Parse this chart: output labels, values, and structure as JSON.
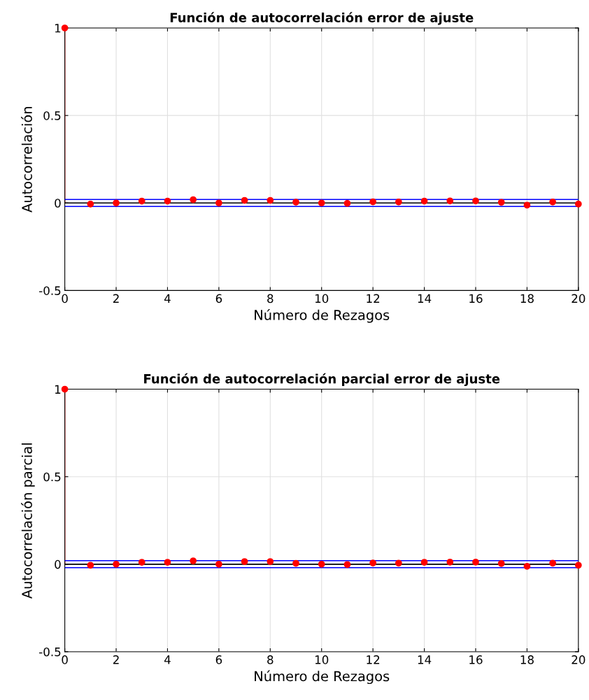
{
  "chart_data": [
    {
      "type": "lollipop",
      "title": "Función de autocorrelación error de ajuste",
      "xlabel": "Número de Rezagos",
      "ylabel": "Autocorrelación",
      "x": [
        0,
        1,
        2,
        3,
        4,
        5,
        6,
        7,
        8,
        9,
        10,
        11,
        12,
        13,
        14,
        15,
        16,
        17,
        18,
        19,
        20
      ],
      "series": [
        {
          "color": "#ff0000",
          "values": [
            1,
            -0.006,
            0,
            0.011,
            0.011,
            0.019,
            0,
            0.015,
            0.015,
            0.005,
            0,
            -0.002,
            0.007,
            0.006,
            0.011,
            0.012,
            0.012,
            0.004,
            -0.012,
            0.006,
            -0.006
          ]
        }
      ],
      "xlim": [
        0,
        20
      ],
      "xticks": [
        0,
        2,
        4,
        6,
        8,
        10,
        12,
        14,
        16,
        18,
        20
      ],
      "ylim": [
        -0.5,
        1
      ],
      "yticks": [
        -0.5,
        0,
        0.5,
        1
      ],
      "grid": true,
      "marker": "circle",
      "ref_lines": [
        {
          "axis": "y",
          "value": 0.02,
          "color": "#0000ff"
        },
        {
          "axis": "y",
          "value": -0.02,
          "color": "#0000ff"
        }
      ]
    },
    {
      "type": "lollipop",
      "title": "Función de autocorrelación parcial error de ajuste",
      "xlabel": "Número de Rezagos",
      "ylabel": "Autocorrelación parcial",
      "x": [
        0,
        1,
        2,
        3,
        4,
        5,
        6,
        7,
        8,
        9,
        10,
        11,
        12,
        13,
        14,
        15,
        16,
        17,
        18,
        19,
        20
      ],
      "series": [
        {
          "color": "#ff0000",
          "values": [
            1,
            -0.006,
            0,
            0.011,
            0.011,
            0.019,
            0,
            0.015,
            0.015,
            0.005,
            0,
            -0.002,
            0.007,
            0.006,
            0.011,
            0.012,
            0.012,
            0.004,
            -0.012,
            0.006,
            -0.006
          ]
        }
      ],
      "xlim": [
        0,
        20
      ],
      "xticks": [
        0,
        2,
        4,
        6,
        8,
        10,
        12,
        14,
        16,
        18,
        20
      ],
      "ylim": [
        -0.5,
        1
      ],
      "yticks": [
        -0.5,
        0,
        0.5,
        1
      ],
      "grid": true,
      "marker": "circle",
      "ref_lines": [
        {
          "axis": "y",
          "value": 0.02,
          "color": "#0000ff"
        },
        {
          "axis": "y",
          "value": -0.02,
          "color": "#0000ff"
        }
      ]
    }
  ]
}
